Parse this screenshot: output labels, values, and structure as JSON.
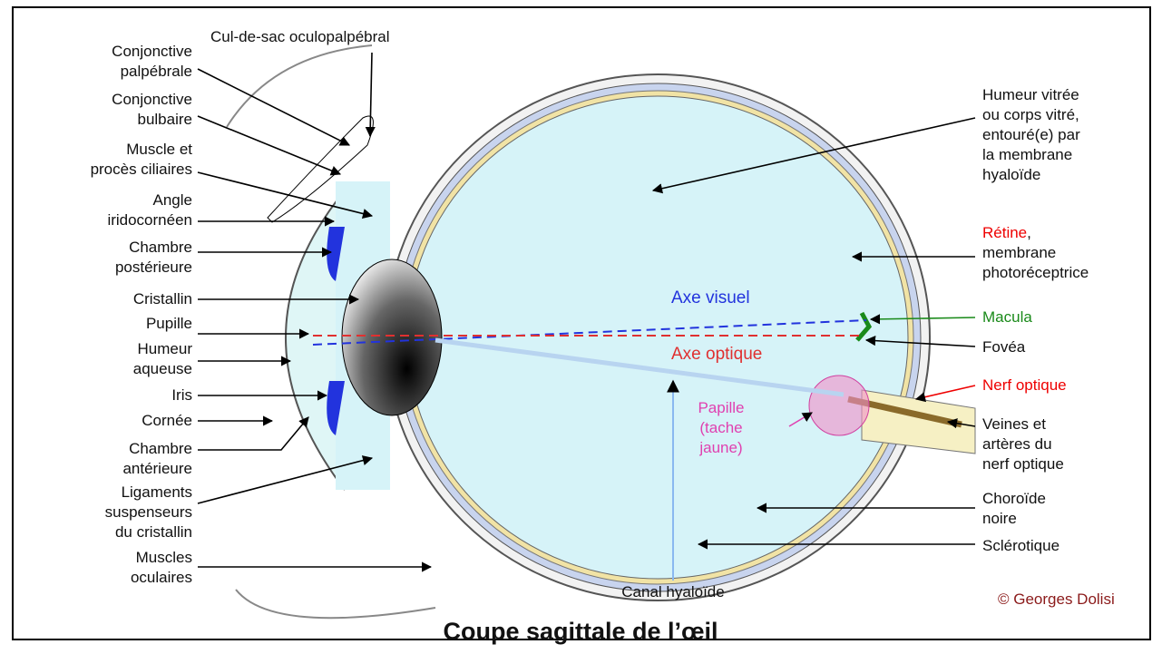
{
  "title": "Coupe sagittale de l’œil",
  "copyright": "© Georges Dolisi",
  "top_label": "Cul-de-sac oculopalpébral",
  "left_labels": [
    {
      "lines": [
        "Conjonctive",
        "palpébrale"
      ]
    },
    {
      "lines": [
        "Conjonctive",
        "bulbaire"
      ]
    },
    {
      "lines": [
        "Muscle et",
        "procès ciliaires"
      ]
    },
    {
      "lines": [
        "Angle",
        "iridocornéen"
      ]
    },
    {
      "lines": [
        "Chambre",
        "postérieure"
      ]
    },
    {
      "lines": [
        "Cristallin"
      ]
    },
    {
      "lines": [
        "Pupille"
      ]
    },
    {
      "lines": [
        "Humeur",
        "aqueuse"
      ]
    },
    {
      "lines": [
        "Iris"
      ]
    },
    {
      "lines": [
        "Cornée"
      ]
    },
    {
      "lines": [
        "Chambre",
        "antérieure"
      ]
    },
    {
      "lines": [
        "Ligaments",
        "suspenseurs",
        "du cristallin"
      ]
    },
    {
      "lines": [
        "Muscles",
        "oculaires"
      ]
    }
  ],
  "right_labels": [
    {
      "lines": [
        "Humeur vitrée",
        "ou corps vitré,",
        "entouré(e) par",
        "la membrane",
        "hyaloïde"
      ]
    },
    {
      "term": "Rétine",
      "punct": ",",
      "lines": [
        "membrane",
        "photoréceptrice"
      ]
    },
    {
      "lines": [
        "Macula"
      ]
    },
    {
      "lines": [
        "Fovéa"
      ]
    },
    {
      "lines": [
        "Nerf optique"
      ]
    },
    {
      "lines": [
        "Veines et",
        "artères du",
        "nerf optique"
      ]
    },
    {
      "lines": [
        "Choroïde",
        "noire"
      ]
    },
    {
      "lines": [
        "Sclérotique"
      ]
    }
  ],
  "inner_labels": {
    "visual_axis": "Axe visuel",
    "optical_axis": "Axe optique",
    "papilla": [
      "Papille",
      "(tache",
      "jaune)"
    ],
    "hyaloid_canal": "Canal hyaloïde"
  }
}
